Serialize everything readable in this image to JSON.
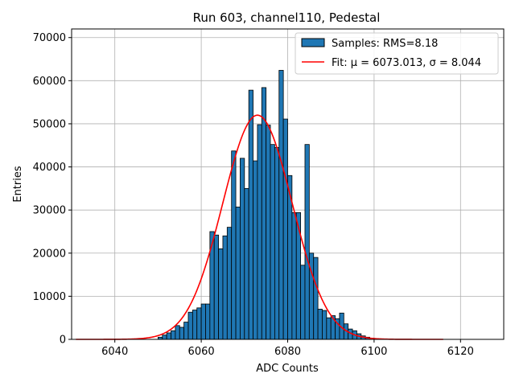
{
  "chart_data": {
    "type": "histogram",
    "title": "Run 603, channel110, Pedestal",
    "xlabel": "ADC Counts",
    "ylabel": "Entries",
    "xlim": [
      6030,
      6130
    ],
    "ylim": [
      0,
      72000
    ],
    "xticks": [
      6040,
      6060,
      6080,
      6100,
      6120
    ],
    "yticks": [
      0,
      10000,
      20000,
      30000,
      40000,
      50000,
      60000,
      70000
    ],
    "grid": true,
    "legend_position": "top-right",
    "bin_width": 1,
    "bin_start": 6050,
    "bar_color": "#1f77b4",
    "fit_color": "#ff0000",
    "counts": [
      500,
      1000,
      1500,
      2000,
      3200,
      2800,
      4000,
      6300,
      6800,
      7300,
      8200,
      8200,
      25000,
      24200,
      21000,
      24000,
      26000,
      43700,
      30700,
      42000,
      35000,
      57800,
      41400,
      49800,
      58400,
      49700,
      45200,
      44500,
      62400,
      51100,
      38000,
      29400,
      29400,
      17200,
      45200,
      20000,
      19000,
      7000,
      6700,
      5000,
      5500,
      4800,
      6100,
      3600,
      2400,
      2000,
      1300,
      800,
      500,
      300
    ],
    "fit": {
      "mu": 6073.013,
      "sigma": 8.044,
      "amplitude": 52000,
      "x_range": [
        6031,
        6116
      ]
    },
    "legend": {
      "hist_label": "Samples: RMS=8.18",
      "fit_label": "Fit: μ = 6073.013, σ = 8.044"
    }
  }
}
